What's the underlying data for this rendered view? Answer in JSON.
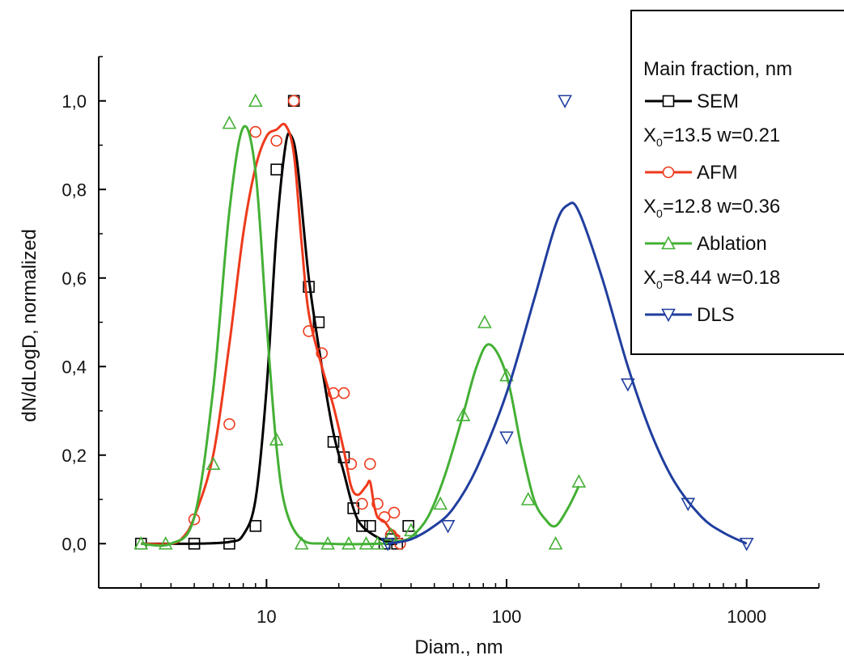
{
  "chart_data": {
    "type": "scatter",
    "xlabel": "Diam., nm",
    "ylabel": "dN/dLogD, normalized",
    "xscale": "log",
    "xlim": [
      2,
      2000
    ],
    "ylim": [
      -0.1,
      1.1
    ],
    "x_ticks": [
      10,
      100,
      1000
    ],
    "x_tick_labels": [
      "10",
      "100",
      "1000"
    ],
    "y_ticks": [
      0.0,
      0.2,
      0.4,
      0.6,
      0.8,
      1.0
    ],
    "y_tick_labels": [
      "0,0",
      "0,2",
      "0,4",
      "0,6",
      "0,8",
      "1,0"
    ],
    "grid": false,
    "legend": {
      "placement": "top-right",
      "title": "Main fraction, nm",
      "entries": [
        {
          "name": "SEM",
          "params": {
            "x0_label": "X",
            "x0_sub": "0",
            "x0_rest": "=13.5 w=0.21"
          }
        },
        {
          "name": "AFM",
          "params": {
            "x0_label": "X",
            "x0_sub": "0",
            "x0_rest": "=12.8 w=0.36"
          }
        },
        {
          "name": "Ablation",
          "params": {
            "x0_label": "X",
            "x0_sub": "0",
            "x0_rest": "=8.44 w=0.18"
          }
        },
        {
          "name": "DLS",
          "params": null
        }
      ]
    },
    "series": [
      {
        "name": "SEM",
        "color": "#000000",
        "marker": "square",
        "points": [
          [
            3,
            0
          ],
          [
            5,
            0
          ],
          [
            7,
            0
          ],
          [
            9,
            0.04
          ],
          [
            11,
            0.845
          ],
          [
            13,
            1.0
          ],
          [
            15,
            0.58
          ],
          [
            16.5,
            0.5
          ],
          [
            19,
            0.23
          ],
          [
            21,
            0.195
          ],
          [
            23,
            0.08
          ],
          [
            25,
            0.04
          ],
          [
            27,
            0.04
          ],
          [
            31,
            0.0
          ],
          [
            33,
            0.01
          ],
          [
            35,
            0.0
          ],
          [
            39,
            0.04
          ]
        ],
        "curve": [
          [
            3,
            0
          ],
          [
            5,
            0
          ],
          [
            7,
            0.004
          ],
          [
            8,
            0.02
          ],
          [
            9,
            0.1
          ],
          [
            10,
            0.35
          ],
          [
            11,
            0.7
          ],
          [
            12,
            0.9
          ],
          [
            12.7,
            0.92
          ],
          [
            13.5,
            0.85
          ],
          [
            15,
            0.6
          ],
          [
            17,
            0.4
          ],
          [
            19,
            0.25
          ],
          [
            21,
            0.16
          ],
          [
            23,
            0.08
          ],
          [
            25,
            0.04
          ],
          [
            30,
            0.01
          ],
          [
            35,
            0.0
          ]
        ]
      },
      {
        "name": "AFM",
        "color": "#ee3a1c",
        "marker": "circle",
        "points": [
          [
            5,
            0.055
          ],
          [
            7,
            0.27
          ],
          [
            9,
            0.93
          ],
          [
            11,
            0.91
          ],
          [
            13,
            1.0
          ],
          [
            15,
            0.48
          ],
          [
            17,
            0.43
          ],
          [
            19,
            0.34
          ],
          [
            21,
            0.34
          ],
          [
            22.5,
            0.18
          ],
          [
            25,
            0.09
          ],
          [
            27,
            0.18
          ],
          [
            29,
            0.09
          ],
          [
            31,
            0.06
          ],
          [
            33,
            0.02
          ],
          [
            34,
            0.07
          ],
          [
            36,
            0.0
          ]
        ],
        "curve": [
          [
            3,
            0
          ],
          [
            4,
            0.0
          ],
          [
            4.5,
            0.015
          ],
          [
            5,
            0.06
          ],
          [
            6,
            0.2
          ],
          [
            7,
            0.45
          ],
          [
            8,
            0.7
          ],
          [
            9,
            0.85
          ],
          [
            10,
            0.92
          ],
          [
            11,
            0.935
          ],
          [
            12,
            0.945
          ],
          [
            13,
            0.88
          ],
          [
            14,
            0.68
          ],
          [
            15,
            0.52
          ],
          [
            17,
            0.4
          ],
          [
            19,
            0.31
          ],
          [
            21,
            0.21
          ],
          [
            22.5,
            0.13
          ],
          [
            24,
            0.11
          ],
          [
            26,
            0.13
          ],
          [
            27,
            0.14
          ],
          [
            28,
            0.09
          ],
          [
            29,
            0.06
          ],
          [
            31,
            0.05
          ],
          [
            33,
            0.03
          ],
          [
            36,
            0.015
          ]
        ]
      },
      {
        "name": "Ablation",
        "color": "#44b035",
        "marker": "triangle-up",
        "points": [
          [
            3,
            0
          ],
          [
            3.8,
            0
          ],
          [
            6,
            0.18
          ],
          [
            7,
            0.95
          ],
          [
            9,
            1.0
          ],
          [
            11,
            0.235
          ],
          [
            14,
            0.0
          ],
          [
            18,
            0.0
          ],
          [
            22,
            0.0
          ],
          [
            26,
            0.0
          ],
          [
            29,
            0.0
          ],
          [
            33,
            0.02
          ],
          [
            40,
            0.03
          ],
          [
            53,
            0.09
          ],
          [
            66,
            0.29
          ],
          [
            81,
            0.5
          ],
          [
            100,
            0.38
          ],
          [
            123,
            0.1
          ],
          [
            160,
            0.0
          ],
          [
            200,
            0.14
          ]
        ],
        "curve": [
          [
            3,
            0
          ],
          [
            4,
            0.0
          ],
          [
            5,
            0.06
          ],
          [
            6,
            0.35
          ],
          [
            7,
            0.75
          ],
          [
            8,
            0.94
          ],
          [
            9,
            0.84
          ],
          [
            10,
            0.5
          ],
          [
            11,
            0.22
          ],
          [
            12,
            0.08
          ],
          [
            14,
            0.01
          ],
          [
            18,
            0.0
          ],
          [
            30,
            0.0
          ],
          [
            35,
            0.005
          ],
          [
            40,
            0.015
          ],
          [
            47,
            0.06
          ],
          [
            55,
            0.15
          ],
          [
            65,
            0.28
          ],
          [
            75,
            0.4
          ],
          [
            85,
            0.45
          ],
          [
            100,
            0.38
          ],
          [
            115,
            0.22
          ],
          [
            130,
            0.1
          ],
          [
            145,
            0.055
          ],
          [
            160,
            0.04
          ],
          [
            180,
            0.08
          ],
          [
            200,
            0.13
          ]
        ]
      },
      {
        "name": "DLS",
        "color": "#203e9e",
        "marker": "triangle-down",
        "points": [
          [
            32,
            0.0
          ],
          [
            57,
            0.04
          ],
          [
            100,
            0.24
          ],
          [
            175,
            1.0
          ],
          [
            320,
            0.36
          ],
          [
            570,
            0.09
          ],
          [
            1000,
            0.0
          ]
        ],
        "curve": [
          [
            32,
            0.0
          ],
          [
            40,
            0.01
          ],
          [
            50,
            0.04
          ],
          [
            60,
            0.08
          ],
          [
            75,
            0.17
          ],
          [
            100,
            0.34
          ],
          [
            130,
            0.55
          ],
          [
            160,
            0.72
          ],
          [
            180,
            0.765
          ],
          [
            200,
            0.75
          ],
          [
            250,
            0.6
          ],
          [
            320,
            0.4
          ],
          [
            400,
            0.25
          ],
          [
            500,
            0.14
          ],
          [
            650,
            0.06
          ],
          [
            800,
            0.025
          ],
          [
            1000,
            0.0
          ]
        ]
      }
    ]
  }
}
